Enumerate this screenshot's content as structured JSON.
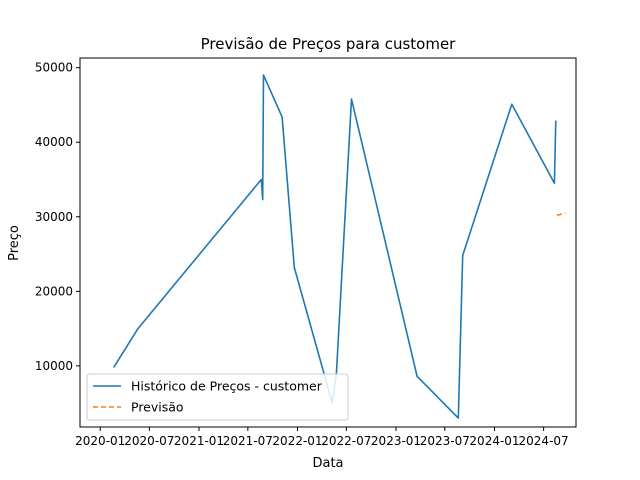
{
  "chart_data": {
    "type": "line",
    "title": "Previsão de Preços para customer",
    "xlabel": "Data",
    "ylabel": "Preço",
    "x_ticks": [
      "2020-01",
      "2020-07",
      "2021-01",
      "2021-07",
      "2022-01",
      "2022-07",
      "2023-01",
      "2023-07",
      "2024-01",
      "2024-07"
    ],
    "y_ticks": [
      10000,
      20000,
      30000,
      40000,
      50000
    ],
    "y_tick_labels": [
      "10000",
      "20000",
      "30000",
      "40000",
      "50000"
    ],
    "xlim": [
      "2019-10-18",
      "2024-10-29"
    ],
    "ylim": [
      1800,
      51300
    ],
    "grid": false,
    "legend_position": "lower-left",
    "series": [
      {
        "name": "Histórico de Preços - customer",
        "color": "#1f77b4",
        "style": "solid",
        "points": [
          {
            "x": "2020-02-20",
            "y": 9800
          },
          {
            "x": "2020-05-20",
            "y": 15000
          },
          {
            "x": "2021-08-20",
            "y": 35000
          },
          {
            "x": "2021-08-25",
            "y": 32300
          },
          {
            "x": "2021-08-28",
            "y": 49000
          },
          {
            "x": "2021-11-05",
            "y": 43400
          },
          {
            "x": "2021-12-20",
            "y": 23200
          },
          {
            "x": "2022-05-10",
            "y": 5000
          },
          {
            "x": "2022-05-25",
            "y": 9000
          },
          {
            "x": "2022-07-20",
            "y": 45800
          },
          {
            "x": "2023-03-20",
            "y": 8600
          },
          {
            "x": "2023-08-20",
            "y": 3000
          },
          {
            "x": "2023-09-05",
            "y": 24800
          },
          {
            "x": "2024-03-05",
            "y": 45100
          },
          {
            "x": "2024-08-10",
            "y": 34500
          },
          {
            "x": "2024-08-15",
            "y": 42900
          }
        ]
      },
      {
        "name": "Previsão",
        "color": "#ff7f0e",
        "style": "dashed",
        "points": [
          {
            "x": "2024-08-20",
            "y": 30200
          },
          {
            "x": "2024-09-20",
            "y": 30500
          }
        ]
      }
    ]
  }
}
